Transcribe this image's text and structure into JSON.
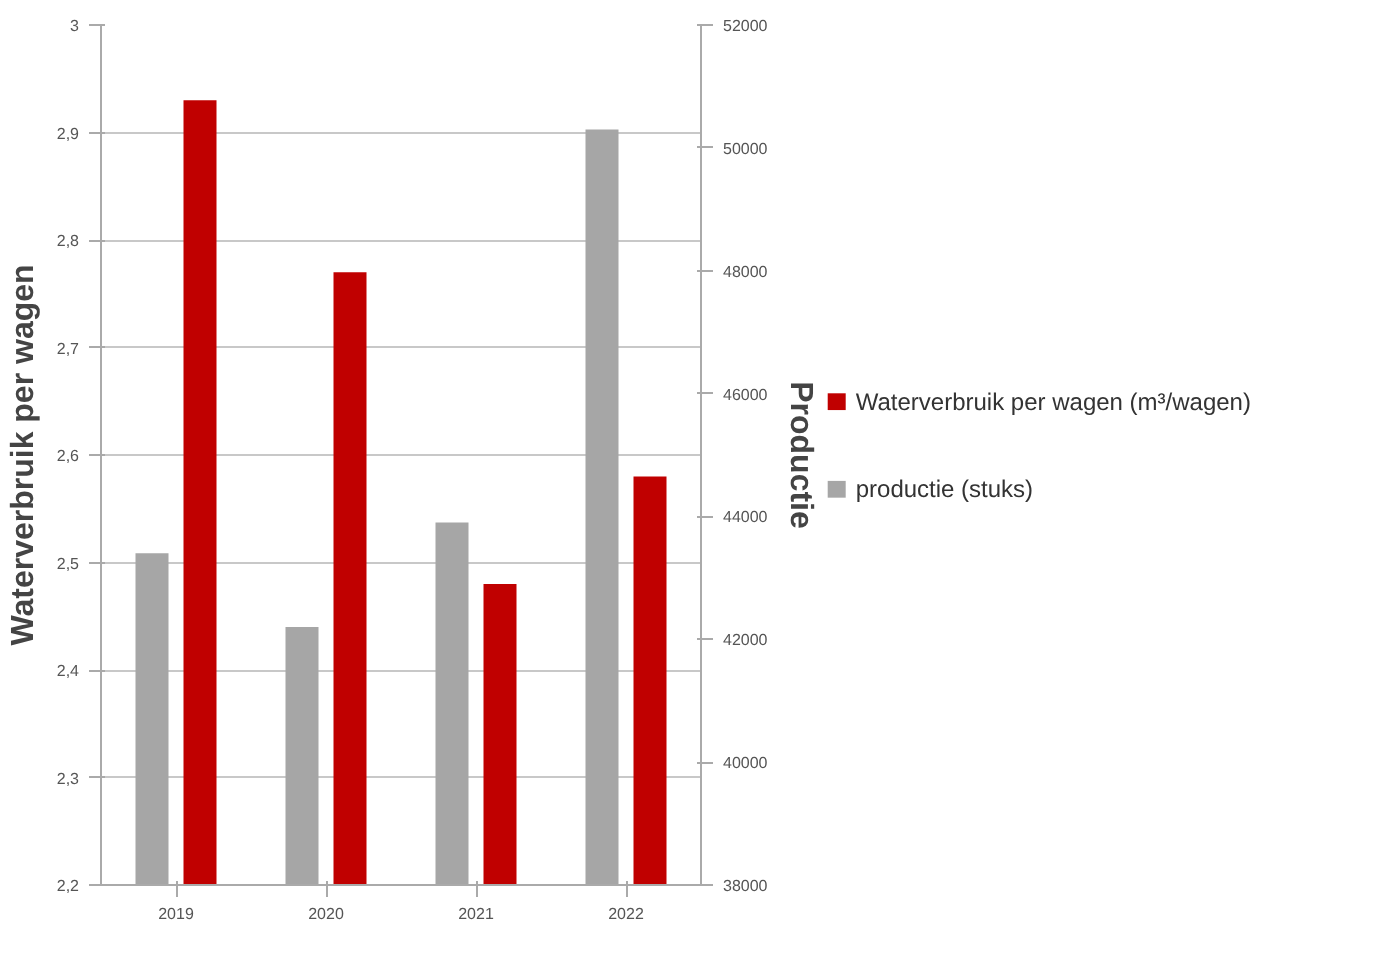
{
  "chart_data": {
    "type": "bar",
    "ylabel": "Waterverbruik per wagen",
    "y2label": "Productie",
    "categories": [
      "2019",
      "2020",
      "2021",
      "2022"
    ],
    "series": [
      {
        "name": "productie (stuks)",
        "color": "#a6a6a6",
        "axis": "y2",
        "values": [
          43400,
          42200,
          43900,
          50300
        ]
      },
      {
        "name": "Waterverbruik per wagen  (m³/wagen)",
        "color": "#c00000",
        "values": [
          2.93,
          2.77,
          2.48,
          2.58
        ]
      }
    ],
    "ylim": [
      2.2,
      3
    ],
    "yticks": [
      {
        "value": 2.2,
        "label": "2,2"
      },
      {
        "value": 2.3,
        "label": "2,3"
      },
      {
        "value": 2.4,
        "label": "2,4"
      },
      {
        "value": 2.5,
        "label": "2,5"
      },
      {
        "value": 2.6,
        "label": "2,6"
      },
      {
        "value": 2.7,
        "label": "2,7"
      },
      {
        "value": 2.8,
        "label": "2,8"
      },
      {
        "value": 2.9,
        "label": "2,9"
      },
      3
    ],
    "y2lim": [
      38000,
      52000
    ],
    "y2ticks": [
      38000,
      40000,
      42000,
      44000,
      46000,
      48000,
      50000,
      52000
    ],
    "grid": "y",
    "legend": "right"
  }
}
